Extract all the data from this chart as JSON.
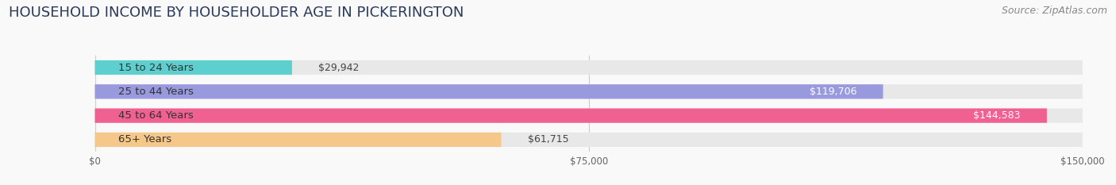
{
  "title": "HOUSEHOLD INCOME BY HOUSEHOLDER AGE IN PICKERINGTON",
  "source": "Source: ZipAtlas.com",
  "categories": [
    "15 to 24 Years",
    "25 to 44 Years",
    "45 to 64 Years",
    "65+ Years"
  ],
  "values": [
    29942,
    119706,
    144583,
    61715
  ],
  "bar_colors": [
    "#5ecfcf",
    "#9999dd",
    "#f06090",
    "#f5c88a"
  ],
  "bar_bg_color": "#e8e8e8",
  "value_labels": [
    "$29,942",
    "$119,706",
    "$144,583",
    "$61,715"
  ],
  "x_max": 150000,
  "x_ticks": [
    0,
    75000,
    150000
  ],
  "x_tick_labels": [
    "$0",
    "$75,000",
    "$150,000"
  ],
  "title_fontsize": 13,
  "source_fontsize": 9,
  "label_fontsize": 9.5,
  "value_fontsize": 9,
  "background_color": "#f9f9f9"
}
